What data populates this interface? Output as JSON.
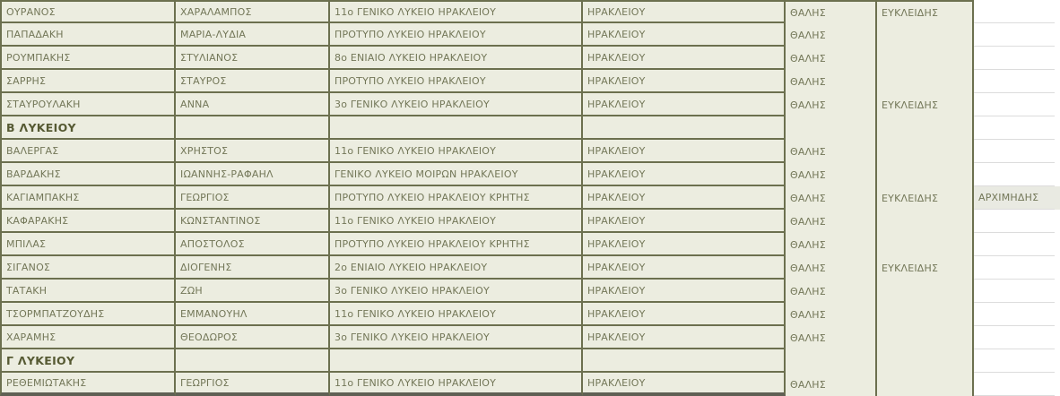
{
  "app": {
    "kind": "spreadsheet-table",
    "description": "List of students qualifying in Greek mathematics competitions",
    "language": "el"
  },
  "colors": {
    "cell_bg": "#ecede0",
    "border": "#6c704f",
    "text": "#737758",
    "section_text": "#565a33",
    "highlight_bg": "#e9eae2",
    "gridline": "#dcdcdc",
    "bottom_band": "#5f6054",
    "white": "#ffffff"
  },
  "columns": [
    {
      "name": "last-name"
    },
    {
      "name": "first-name"
    },
    {
      "name": "school"
    },
    {
      "name": "city"
    },
    {
      "name": "contest-thalis"
    },
    {
      "name": "contest-eykleidis"
    },
    {
      "name": "contest-archimedes"
    },
    {
      "name": "grid-edge"
    }
  ],
  "table": {
    "rows": [
      {
        "type": "data",
        "cells": {
          "last": "ΟΥΡΑΝΟΣ",
          "first": "ΧΑΡΑΛΑΜΠΟΣ",
          "school": "11ο ΓΕΝΙΚΟ ΛΥΚΕΙΟ ΗΡΑΚΛΕΙΟΥ",
          "city": "ΗΡΑΚΛΕΙΟΥ",
          "thalis": "ΘΑΛΗΣ",
          "eykleidis": "ΕΥΚΛΕΙΔΗΣ",
          "archimedes": ""
        }
      },
      {
        "type": "data",
        "cells": {
          "last": "ΠΑΠΑΔΑΚΗ",
          "first": "ΜΑΡΙΑ-ΛΥΔΙΑ",
          "school": "ΠΡΟΤΥΠΟ ΛΥΚΕΙΟ ΗΡΑΚΛΕΙΟΥ",
          "city": "ΗΡΑΚΛΕΙΟΥ",
          "thalis": "ΘΑΛΗΣ",
          "eykleidis": "",
          "archimedes": ""
        }
      },
      {
        "type": "data",
        "cells": {
          "last": "ΡΟΥΜΠΑΚΗΣ",
          "first": "ΣΤΥΛΙΑΝΟΣ",
          "school": "8ο ΕΝΙΑΙΟ ΛΥΚΕΙΟ ΗΡΑΚΛΕΙΟΥ",
          "city": "ΗΡΑΚΛΕΙΟΥ",
          "thalis": "ΘΑΛΗΣ",
          "eykleidis": "",
          "archimedes": ""
        }
      },
      {
        "type": "data",
        "cells": {
          "last": "ΣΑΡΡΗΣ",
          "first": "ΣΤΑΥΡΟΣ",
          "school": "ΠΡΟΤΥΠΟ ΛΥΚΕΙΟ ΗΡΑΚΛΕΙΟΥ",
          "city": "ΗΡΑΚΛΕΙΟΥ",
          "thalis": "ΘΑΛΗΣ",
          "eykleidis": "",
          "archimedes": ""
        }
      },
      {
        "type": "data",
        "cells": {
          "last": "ΣΤΑΥΡΟΥΛΑΚΗ",
          "first": "ΑΝΝΑ",
          "school": "3ο ΓΕΝΙΚΟ ΛΥΚΕΙΟ ΗΡΑΚΛΕΙΟΥ",
          "city": "ΗΡΑΚΛΕΙΟΥ",
          "thalis": "ΘΑΛΗΣ",
          "eykleidis": "ΕΥΚΛΕΙΔΗΣ",
          "archimedes": ""
        }
      },
      {
        "type": "section",
        "label": "Β ΛΥΚΕΙΟΥ"
      },
      {
        "type": "data",
        "cells": {
          "last": "ΒΑΛΕΡΓΑΣ",
          "first": "ΧΡΗΣΤΟΣ",
          "school": "11ο ΓΕΝΙΚΟ ΛΥΚΕΙΟ ΗΡΑΚΛΕΙΟΥ",
          "city": "ΗΡΑΚΛΕΙΟΥ",
          "thalis": "ΘΑΛΗΣ",
          "eykleidis": "",
          "archimedes": ""
        }
      },
      {
        "type": "data",
        "cells": {
          "last": "ΒΑΡΔΑΚΗΣ",
          "first": "ΙΩΑΝΝΗΣ-ΡΑΦΑΗΛ",
          "school": "ΓΕΝΙΚΟ ΛΥΚΕΙΟ ΜΟΙΡΩΝ ΗΡΑΚΛΕΙΟΥ",
          "city": "ΗΡΑΚΛΕΙΟΥ",
          "thalis": "ΘΑΛΗΣ",
          "eykleidis": "",
          "archimedes": ""
        }
      },
      {
        "type": "data",
        "cells": {
          "last": "ΚΑΓΙΑΜΠΑΚΗΣ",
          "first": "ΓΕΩΡΓΙΟΣ",
          "school": "ΠΡΟΤΥΠΟ ΛΥΚΕΙΟ ΗΡΑΚΛΕΙΟΥ ΚΡΗΤΗΣ",
          "city": "ΗΡΑΚΛΕΙΟΥ",
          "thalis": "ΘΑΛΗΣ",
          "eykleidis": "ΕΥΚΛΕΙΔΗΣ",
          "archimedes": "ΑΡΧΙΜΗΔΗΣ"
        }
      },
      {
        "type": "data",
        "cells": {
          "last": "ΚΑΦΑΡΑΚΗΣ",
          "first": "ΚΩΝΣΤΑΝΤΙΝΟΣ",
          "school": "11ο ΓΕΝΙΚΟ ΛΥΚΕΙΟ ΗΡΑΚΛΕΙΟΥ",
          "city": "ΗΡΑΚΛΕΙΟΥ",
          "thalis": "ΘΑΛΗΣ",
          "eykleidis": "",
          "archimedes": ""
        }
      },
      {
        "type": "data",
        "cells": {
          "last": "ΜΠΙΛΑΣ",
          "first": "ΑΠΟΣΤΟΛΟΣ",
          "school": "ΠΡΟΤΥΠΟ ΛΥΚΕΙΟ ΗΡΑΚΛΕΙΟΥ ΚΡΗΤΗΣ",
          "city": "ΗΡΑΚΛΕΙΟΥ",
          "thalis": "ΘΑΛΗΣ",
          "eykleidis": "",
          "archimedes": ""
        }
      },
      {
        "type": "data",
        "cells": {
          "last": "ΣΙΓΑΝΟΣ",
          "first": "ΔΙΟΓΕΝΗΣ",
          "school": "2ο ΕΝΙΑΙΟ ΛΥΚΕΙΟ ΗΡΑΚΛΕΙΟΥ",
          "city": "ΗΡΑΚΛΕΙΟΥ",
          "thalis": "ΘΑΛΗΣ",
          "eykleidis": "ΕΥΚΛΕΙΔΗΣ",
          "archimedes": ""
        }
      },
      {
        "type": "data",
        "cells": {
          "last": "ΤΑΤΑΚΗ",
          "first": "ΖΩΗ",
          "school": "3ο ΓΕΝΙΚΟ ΛΥΚΕΙΟ ΗΡΑΚΛΕΙΟΥ",
          "city": "ΗΡΑΚΛΕΙΟΥ",
          "thalis": "ΘΑΛΗΣ",
          "eykleidis": "",
          "archimedes": ""
        }
      },
      {
        "type": "data",
        "cells": {
          "last": "ΤΣΟΡΜΠΑΤΖΟΥΔΗΣ",
          "first": "ΕΜΜΑΝΟΥΗΛ",
          "school": "11ο ΓΕΝΙΚΟ ΛΥΚΕΙΟ ΗΡΑΚΛΕΙΟΥ",
          "city": "ΗΡΑΚΛΕΙΟΥ",
          "thalis": "ΘΑΛΗΣ",
          "eykleidis": "",
          "archimedes": ""
        }
      },
      {
        "type": "data",
        "cells": {
          "last": "ΧΑΡΑΜΗΣ",
          "first": "ΘΕΟΔΩΡΟΣ",
          "school": "3ο ΓΕΝΙΚΟ ΛΥΚΕΙΟ ΗΡΑΚΛΕΙΟΥ",
          "city": "ΗΡΑΚΛΕΙΟΥ",
          "thalis": "ΘΑΛΗΣ",
          "eykleidis": "",
          "archimedes": ""
        }
      },
      {
        "type": "section",
        "label": "Γ ΛΥΚΕΙΟΥ"
      },
      {
        "type": "data",
        "cells": {
          "last": "ΡΕΘΕΜΙΩΤΑΚΗΣ",
          "first": "ΓΕΩΡΓΙΟΣ",
          "school": "11ο ΓΕΝΙΚΟ ΛΥΚΕΙΟ ΗΡΑΚΛΕΙΟΥ",
          "city": "ΗΡΑΚΛΕΙΟΥ",
          "thalis": "ΘΑΛΗΣ",
          "eykleidis": "",
          "archimedes": ""
        }
      }
    ]
  }
}
